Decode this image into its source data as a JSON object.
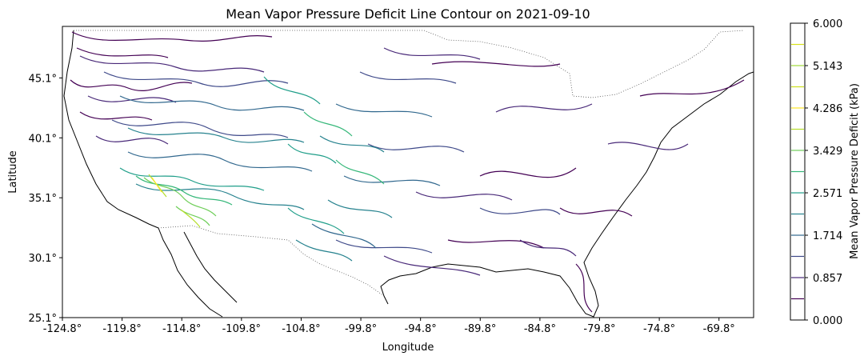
{
  "title": "Mean Vapor Pressure Deficit Line Contour on 2021-09-10",
  "xlabel": "Longitude",
  "ylabel": "Latitude",
  "colorbar_label": "Mean Vapor Pressure Deficit (kPa)",
  "chart_data": {
    "type": "contour",
    "colormap": "viridis",
    "xlim": [
      -124.8,
      -66.9
    ],
    "ylim": [
      25.1,
      49.4
    ],
    "x_ticks": [
      "-124.8°",
      "-119.8°",
      "-114.8°",
      "-109.8°",
      "-104.8°",
      "-99.8°",
      "-94.8°",
      "-89.8°",
      "-84.8°",
      "-79.8°",
      "-74.8°",
      "-69.8°"
    ],
    "y_ticks": [
      "25.1°",
      "30.1°",
      "35.1°",
      "40.1°",
      "45.1°"
    ],
    "colorbar_ticks": [
      "0.000",
      "0.857",
      "1.714",
      "2.571",
      "3.429",
      "4.286",
      "5.143",
      "6.000"
    ],
    "levels": [
      0.429,
      0.857,
      1.286,
      1.714,
      2.143,
      2.571,
      3.0,
      3.429,
      3.857,
      4.286,
      4.714,
      5.143,
      5.571
    ],
    "level_colors": [
      "#440154",
      "#482878",
      "#3e4989",
      "#31688e",
      "#26828e",
      "#1f9e89",
      "#35b779",
      "#6ece58",
      "#b5de2b",
      "#fde725",
      "#cde11d",
      "#a0da39",
      "#d8e219"
    ]
  }
}
